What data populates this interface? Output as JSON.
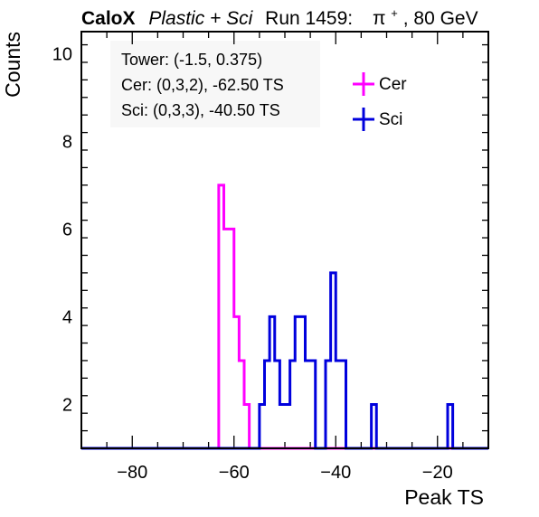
{
  "header": {
    "brand": "CaloX",
    "subtitle": "Plastic + Sci",
    "run": "Run 1459:",
    "particle_symbol": "π",
    "particle_charge": "+",
    "energy": ", 80 GeV"
  },
  "info_box": {
    "lines": [
      "Tower: (-1.5, 0.375)",
      "Cer: (0,3,2), -62.50 TS",
      "Sci: (0,3,3), -40.50 TS"
    ]
  },
  "chart_data": {
    "type": "line",
    "style": "step-histogram",
    "xlabel": "Peak TS",
    "ylabel": "Counts",
    "xlim": [
      -90,
      -10
    ],
    "ylim": [
      1,
      10.5
    ],
    "x_ticks": [
      -80,
      -60,
      -40,
      -20
    ],
    "y_ticks": [
      2,
      4,
      6,
      8,
      10
    ],
    "legend_position": "top-right",
    "series": [
      {
        "name": "Cer",
        "color": "#ff00ff",
        "bins": [
          {
            "x0": -63,
            "x1": -62,
            "y": 7
          },
          {
            "x0": -62,
            "x1": -61,
            "y": 6
          },
          {
            "x0": -61,
            "x1": -60,
            "y": 6
          },
          {
            "x0": -60,
            "x1": -59,
            "y": 4
          },
          {
            "x0": -59,
            "x1": -58,
            "y": 3
          },
          {
            "x0": -58,
            "x1": -57,
            "y": 2
          }
        ]
      },
      {
        "name": "Sci",
        "color": "#0000dd",
        "bins": [
          {
            "x0": -55,
            "x1": -54,
            "y": 2
          },
          {
            "x0": -54,
            "x1": -53,
            "y": 3
          },
          {
            "x0": -53,
            "x1": -52,
            "y": 4
          },
          {
            "x0": -52,
            "x1": -51,
            "y": 3
          },
          {
            "x0": -51,
            "x1": -50,
            "y": 2
          },
          {
            "x0": -50,
            "x1": -49,
            "y": 2
          },
          {
            "x0": -49,
            "x1": -48,
            "y": 3
          },
          {
            "x0": -48,
            "x1": -47,
            "y": 4
          },
          {
            "x0": -47,
            "x1": -46,
            "y": 4
          },
          {
            "x0": -46,
            "x1": -45,
            "y": 3
          },
          {
            "x0": -45,
            "x1": -44,
            "y": 3
          },
          {
            "x0": -44,
            "x1": -43,
            "y": 1
          },
          {
            "x0": -43,
            "x1": -42,
            "y": 1
          },
          {
            "x0": -42,
            "x1": -41,
            "y": 3
          },
          {
            "x0": -41,
            "x1": -40,
            "y": 5
          },
          {
            "x0": -40,
            "x1": -39,
            "y": 3
          },
          {
            "x0": -39,
            "x1": -38,
            "y": 3
          },
          {
            "x0": -33,
            "x1": -32,
            "y": 2
          },
          {
            "x0": -18,
            "x1": -17,
            "y": 2
          }
        ]
      }
    ]
  }
}
